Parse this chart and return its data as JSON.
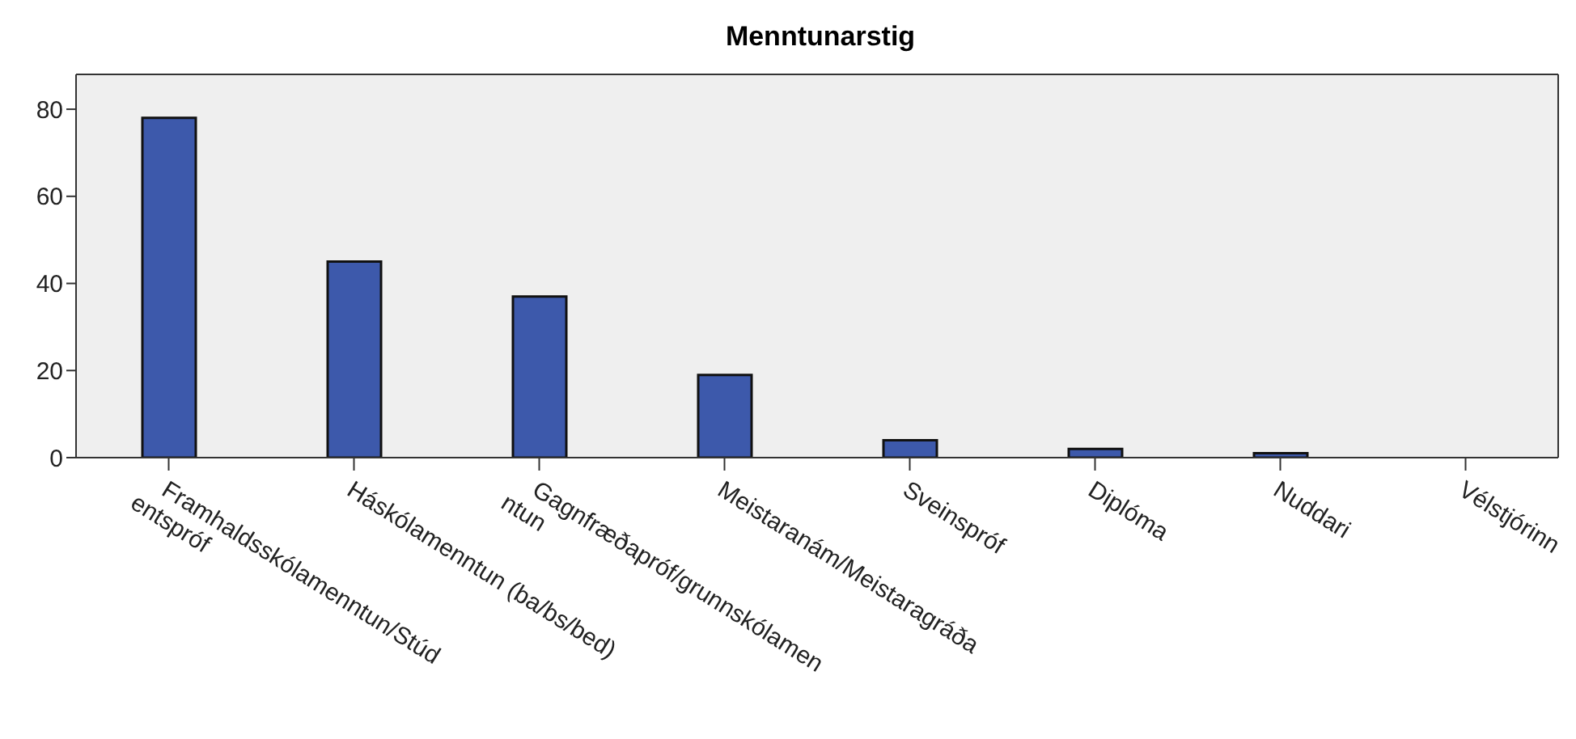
{
  "chart_data": {
    "type": "bar",
    "title": "Menntunarstig",
    "categories": [
      "Framhaldsskólamenntun/Stúd\nentspróf",
      "Háskólamenntun (ba/bs/bed)",
      "Gagnfræðapróf/grunnskólamen\nntun",
      "Meistaranám/Meistaragráða",
      "Sveinspróf",
      "Diplóma",
      "Nuddari",
      "Vélstjórinn"
    ],
    "values": [
      78,
      45,
      37,
      19,
      4,
      2,
      1,
      0
    ],
    "color": "#3d59ab",
    "ylim": [
      0,
      88
    ],
    "yticks": [
      0,
      20,
      40,
      60,
      80
    ],
    "grid": false
  }
}
